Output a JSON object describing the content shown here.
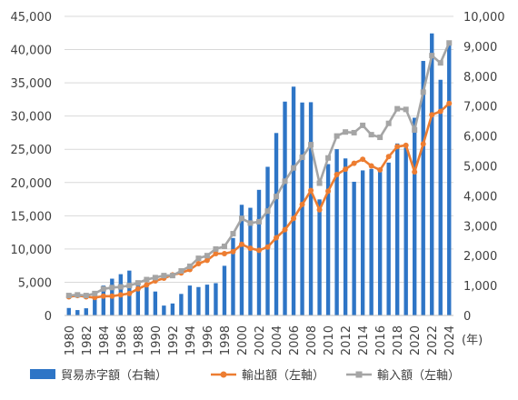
{
  "chart_data": {
    "type": "bar+line",
    "categories": [
      "1980",
      "1981",
      "1982",
      "1983",
      "1984",
      "1985",
      "1986",
      "1987",
      "1988",
      "1989",
      "1990",
      "1991",
      "1992",
      "1993",
      "1994",
      "1995",
      "1996",
      "1997",
      "1998",
      "1999",
      "2000",
      "2001",
      "2002",
      "2003",
      "2004",
      "2005",
      "2006",
      "2007",
      "2008",
      "2009",
      "2010",
      "2011",
      "2012",
      "2013",
      "2014",
      "2015",
      "2016",
      "2017",
      "2018",
      "2019",
      "2020",
      "2021",
      "2022",
      "2023",
      "2024"
    ],
    "x_tick_labels": [
      "1980",
      "1982",
      "1984",
      "1986",
      "1988",
      "1990",
      "1992",
      "1994",
      "1996",
      "1998",
      "2000",
      "2002",
      "2004",
      "2006",
      "2008",
      "2010",
      "2012",
      "2014",
      "2016",
      "2018",
      "2020",
      "2022",
      "2024"
    ],
    "x_unit": "(年)",
    "left_axis": {
      "min": 0,
      "max": 45000,
      "ticks": [
        "0",
        "5,000",
        "10,000",
        "15,000",
        "20,000",
        "25,000",
        "30,000",
        "35,000",
        "40,000",
        "45,000"
      ]
    },
    "right_axis": {
      "min": 0,
      "max": 10000,
      "ticks": [
        "0",
        "1,000",
        "2,000",
        "3,000",
        "4,000",
        "5,000",
        "6,000",
        "7,000",
        "8,000",
        "9,000",
        "10,000"
      ]
    },
    "series": [
      {
        "name": "貿易赤字額（右軸）",
        "kind": "bar",
        "axis": "right",
        "color": "#2e75c6",
        "values": [
          250,
          180,
          240,
          550,
          1000,
          1230,
          1380,
          1500,
          1000,
          950,
          800,
          330,
          400,
          720,
          1000,
          950,
          1030,
          1080,
          1660,
          2590,
          3700,
          3600,
          4200,
          4970,
          6100,
          7150,
          7650,
          7120,
          7130,
          3880,
          5060,
          5560,
          5250,
          4470,
          4850,
          4900,
          4800,
          5110,
          5750,
          5610,
          6610,
          8510,
          9430,
          7880,
          9160
        ]
      },
      {
        "name": "輸出額（左軸）",
        "kind": "line",
        "axis": "left",
        "color": "#ed7d31",
        "values": [
          2800,
          3000,
          2800,
          2700,
          2900,
          2900,
          3100,
          3300,
          4000,
          4600,
          5200,
          5600,
          6100,
          6400,
          6900,
          7800,
          8300,
          9300,
          9300,
          9600,
          10700,
          10100,
          9800,
          10300,
          11700,
          12900,
          14600,
          16700,
          18800,
          15900,
          18700,
          21200,
          22000,
          22900,
          23500,
          22500,
          21900,
          23900,
          25400,
          25600,
          21600,
          25800,
          30200,
          30700,
          31900
        ]
      },
      {
        "name": "輸入額（左軸）",
        "kind": "line",
        "axis": "left",
        "color": "#a5a5a5",
        "values": [
          3000,
          3100,
          3000,
          3300,
          4000,
          4200,
          4300,
          4500,
          4900,
          5400,
          5700,
          6000,
          6000,
          6700,
          7400,
          8600,
          9000,
          10000,
          10400,
          12300,
          14600,
          13900,
          14100,
          15700,
          17900,
          20200,
          22200,
          23800,
          25700,
          19900,
          23700,
          27000,
          27600,
          27500,
          28600,
          27200,
          26800,
          28900,
          31100,
          31000,
          27900,
          33600,
          39100,
          38000,
          41000
        ]
      }
    ]
  }
}
